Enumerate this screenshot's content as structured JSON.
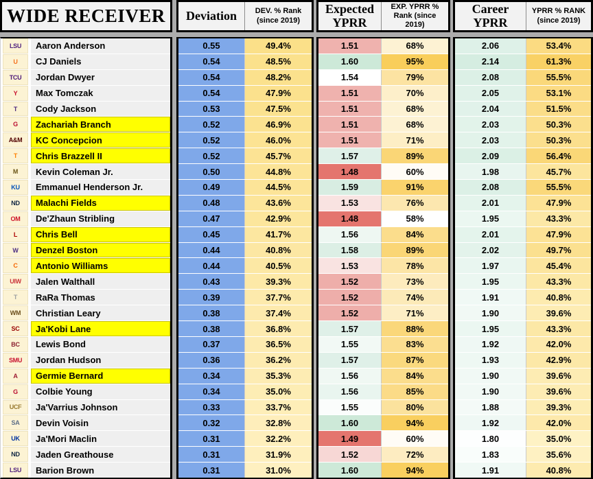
{
  "title": "WIDE RECEIVER",
  "headers": {
    "deviation": "Deviation",
    "dev_rank": "DEV. % Rank (since 2019)",
    "expected_yprr": "Expected YPRR",
    "exp_rank": "EXP. YPRR % Rank (since 2019)",
    "career_yprr": "Career YPRR",
    "yprr_rank": "YPRR % RANK (since 2019)"
  },
  "colors": {
    "row_bg": "#EFEFEF",
    "row_highlight": "#FFFF00",
    "logo_cell_bg": "#FCF3D4",
    "header_bg": "#F2F2F2",
    "gap_bg": "#ACACAC",
    "deviation_fill": "#7FA8E9",
    "scales": {
      "dev_rank": {
        "min": 31.0,
        "max": 49.4,
        "from": "#FEF0C0",
        "to": "#FBE089"
      },
      "exp_rank": {
        "min": 58,
        "max": 95,
        "from": "#FFFFFF",
        "to": "#F9CE5B"
      },
      "career_yprr": {
        "min": 1.8,
        "max": 2.14,
        "from": "#FDFEFE",
        "to": "#D5EDE1"
      },
      "yprr_rank": {
        "min": 35.0,
        "max": 61.3,
        "from": "#FEF2C4",
        "to": "#F9D165"
      }
    }
  },
  "chart_data": {
    "type": "table",
    "columns": [
      "Player",
      "Team",
      "Deviation",
      "DEV. % Rank (since 2019)",
      "Expected YPRR",
      "EXP. YPRR % Rank (since 2019)",
      "Career YPRR",
      "YPRR % RANK (since 2019)"
    ],
    "rows": [
      {
        "name": "Aaron Anderson",
        "team_abbr": "LSU",
        "team_color": "#52247F",
        "highlighted": false,
        "deviation": "0.55",
        "dev_rank": "49.4%",
        "expected_yprr": "1.51",
        "expected_yprr_color": "#EFB2AE",
        "exp_rank": "68%",
        "career_yprr": "2.06",
        "yprr_rank": "53.4%"
      },
      {
        "name": "CJ Daniels",
        "team_abbr": "U",
        "team_color": "#F47321",
        "highlighted": false,
        "deviation": "0.54",
        "dev_rank": "48.5%",
        "expected_yprr": "1.60",
        "expected_yprr_color": "#CDE9D8",
        "exp_rank": "95%",
        "career_yprr": "2.14",
        "yprr_rank": "61.3%"
      },
      {
        "name": "Jordan Dwyer",
        "team_abbr": "TCU",
        "team_color": "#4D1979",
        "highlighted": false,
        "deviation": "0.54",
        "dev_rank": "48.2%",
        "expected_yprr": "1.54",
        "expected_yprr_color": "#FFFFFF",
        "exp_rank": "79%",
        "career_yprr": "2.08",
        "yprr_rank": "55.5%"
      },
      {
        "name": "Max Tomczak",
        "team_abbr": "Y",
        "team_color": "#C8102E",
        "highlighted": false,
        "deviation": "0.54",
        "dev_rank": "47.9%",
        "expected_yprr": "1.51",
        "expected_yprr_color": "#EFB2AE",
        "exp_rank": "70%",
        "career_yprr": "2.05",
        "yprr_rank": "53.1%"
      },
      {
        "name": "Cody Jackson",
        "team_abbr": "T",
        "team_color": "#4F2D7F",
        "highlighted": false,
        "deviation": "0.53",
        "dev_rank": "47.5%",
        "expected_yprr": "1.51",
        "expected_yprr_color": "#EFB2AE",
        "exp_rank": "68%",
        "career_yprr": "2.04",
        "yprr_rank": "51.5%"
      },
      {
        "name": "Zachariah Branch",
        "team_abbr": "G",
        "team_color": "#BA0C2F",
        "highlighted": true,
        "deviation": "0.52",
        "dev_rank": "46.9%",
        "expected_yprr": "1.51",
        "expected_yprr_color": "#EFB2AE",
        "exp_rank": "68%",
        "career_yprr": "2.03",
        "yprr_rank": "50.3%"
      },
      {
        "name": "KC Concepcion",
        "team_abbr": "A&M",
        "team_color": "#500000",
        "highlighted": true,
        "deviation": "0.52",
        "dev_rank": "46.0%",
        "expected_yprr": "1.51",
        "expected_yprr_color": "#EFB2AE",
        "exp_rank": "71%",
        "career_yprr": "2.03",
        "yprr_rank": "50.3%"
      },
      {
        "name": "Chris Brazzell II",
        "team_abbr": "T",
        "team_color": "#FF8200",
        "highlighted": true,
        "deviation": "0.52",
        "dev_rank": "45.7%",
        "expected_yprr": "1.57",
        "expected_yprr_color": "#DFF0E8",
        "exp_rank": "89%",
        "career_yprr": "2.09",
        "yprr_rank": "56.4%"
      },
      {
        "name": "Kevin Coleman Jr.",
        "team_abbr": "M",
        "team_color": "#6B5618",
        "highlighted": false,
        "deviation": "0.50",
        "dev_rank": "44.8%",
        "expected_yprr": "1.48",
        "expected_yprr_color": "#E4756E",
        "exp_rank": "60%",
        "career_yprr": "1.98",
        "yprr_rank": "45.7%"
      },
      {
        "name": "Emmanuel Henderson Jr.",
        "team_abbr": "KU",
        "team_color": "#0051BA",
        "highlighted": false,
        "deviation": "0.49",
        "dev_rank": "44.5%",
        "expected_yprr": "1.59",
        "expected_yprr_color": "#D8EDE2",
        "exp_rank": "91%",
        "career_yprr": "2.08",
        "yprr_rank": "55.5%"
      },
      {
        "name": "Malachi Fields",
        "team_abbr": "ND",
        "team_color": "#0C2340",
        "highlighted": true,
        "deviation": "0.48",
        "dev_rank": "43.6%",
        "expected_yprr": "1.53",
        "expected_yprr_color": "#F9E3E1",
        "exp_rank": "76%",
        "career_yprr": "2.01",
        "yprr_rank": "47.9%"
      },
      {
        "name": "De'Zhaun Stribling",
        "team_abbr": "OM",
        "team_color": "#CE1126",
        "highlighted": false,
        "deviation": "0.47",
        "dev_rank": "42.9%",
        "expected_yprr": "1.48",
        "expected_yprr_color": "#E4756E",
        "exp_rank": "58%",
        "career_yprr": "1.95",
        "yprr_rank": "43.3%"
      },
      {
        "name": "Chris Bell",
        "team_abbr": "L",
        "team_color": "#AD0000",
        "highlighted": true,
        "deviation": "0.45",
        "dev_rank": "41.7%",
        "expected_yprr": "1.56",
        "expected_yprr_color": "#EEF7F2",
        "exp_rank": "84%",
        "career_yprr": "2.01",
        "yprr_rank": "47.9%"
      },
      {
        "name": "Denzel Boston",
        "team_abbr": "W",
        "team_color": "#4B2E83",
        "highlighted": true,
        "deviation": "0.44",
        "dev_rank": "40.8%",
        "expected_yprr": "1.58",
        "expected_yprr_color": "#DCEFE5",
        "exp_rank": "89%",
        "career_yprr": "2.02",
        "yprr_rank": "49.7%"
      },
      {
        "name": "Antonio Williams",
        "team_abbr": "C",
        "team_color": "#F56600",
        "highlighted": true,
        "deviation": "0.44",
        "dev_rank": "40.5%",
        "expected_yprr": "1.53",
        "expected_yprr_color": "#F9E3E1",
        "exp_rank": "78%",
        "career_yprr": "1.97",
        "yprr_rank": "45.4%"
      },
      {
        "name": "Jalen Walthall",
        "team_abbr": "UIW",
        "team_color": "#CB333B",
        "highlighted": false,
        "deviation": "0.43",
        "dev_rank": "39.3%",
        "expected_yprr": "1.52",
        "expected_yprr_color": "#EEAEAA",
        "exp_rank": "73%",
        "career_yprr": "1.95",
        "yprr_rank": "43.3%"
      },
      {
        "name": "RaRa Thomas",
        "team_abbr": "T",
        "team_color": "#9EA2A2",
        "highlighted": false,
        "deviation": "0.39",
        "dev_rank": "37.7%",
        "expected_yprr": "1.52",
        "expected_yprr_color": "#EEAEAA",
        "exp_rank": "74%",
        "career_yprr": "1.91",
        "yprr_rank": "40.8%"
      },
      {
        "name": "Christian Leary",
        "team_abbr": "WM",
        "team_color": "#6C4F1D",
        "highlighted": false,
        "deviation": "0.38",
        "dev_rank": "37.4%",
        "expected_yprr": "1.52",
        "expected_yprr_color": "#EEAEAA",
        "exp_rank": "71%",
        "career_yprr": "1.90",
        "yprr_rank": "39.6%"
      },
      {
        "name": "Ja'Kobi Lane",
        "team_abbr": "SC",
        "team_color": "#990000",
        "highlighted": true,
        "deviation": "0.38",
        "dev_rank": "36.8%",
        "expected_yprr": "1.57",
        "expected_yprr_color": "#DFF0E8",
        "exp_rank": "88%",
        "career_yprr": "1.95",
        "yprr_rank": "43.3%"
      },
      {
        "name": "Lewis Bond",
        "team_abbr": "BC",
        "team_color": "#8C2232",
        "highlighted": false,
        "deviation": "0.37",
        "dev_rank": "36.5%",
        "expected_yprr": "1.55",
        "expected_yprr_color": "#F2F9F5",
        "exp_rank": "83%",
        "career_yprr": "1.92",
        "yprr_rank": "42.0%"
      },
      {
        "name": "Jordan Hudson",
        "team_abbr": "SMU",
        "team_color": "#C8102E",
        "highlighted": false,
        "deviation": "0.36",
        "dev_rank": "36.2%",
        "expected_yprr": "1.57",
        "expected_yprr_color": "#DFF0E8",
        "exp_rank": "87%",
        "career_yprr": "1.93",
        "yprr_rank": "42.9%"
      },
      {
        "name": "Germie Bernard",
        "team_abbr": "A",
        "team_color": "#9E1B32",
        "highlighted": true,
        "deviation": "0.34",
        "dev_rank": "35.3%",
        "expected_yprr": "1.56",
        "expected_yprr_color": "#F0F8F3",
        "exp_rank": "84%",
        "career_yprr": "1.90",
        "yprr_rank": "39.6%"
      },
      {
        "name": "Colbie Young",
        "team_abbr": "G",
        "team_color": "#BA0C2F",
        "highlighted": false,
        "deviation": "0.34",
        "dev_rank": "35.0%",
        "expected_yprr": "1.56",
        "expected_yprr_color": "#E9F5EF",
        "exp_rank": "85%",
        "career_yprr": "1.90",
        "yprr_rank": "39.6%"
      },
      {
        "name": "Ja'Varrius Johnson",
        "team_abbr": "UCF",
        "team_color": "#997A2F",
        "highlighted": false,
        "deviation": "0.33",
        "dev_rank": "33.7%",
        "expected_yprr": "1.55",
        "expected_yprr_color": "#FBFDFC",
        "exp_rank": "80%",
        "career_yprr": "1.88",
        "yprr_rank": "39.3%"
      },
      {
        "name": "Devin Voisin",
        "team_abbr": "SA",
        "team_color": "#5C6E87",
        "highlighted": false,
        "deviation": "0.32",
        "dev_rank": "32.8%",
        "expected_yprr": "1.60",
        "expected_yprr_color": "#CDE9D8",
        "exp_rank": "94%",
        "career_yprr": "1.92",
        "yprr_rank": "42.0%"
      },
      {
        "name": "Ja'Mori Maclin",
        "team_abbr": "UK",
        "team_color": "#0033A0",
        "highlighted": false,
        "deviation": "0.31",
        "dev_rank": "32.2%",
        "expected_yprr": "1.49",
        "expected_yprr_color": "#E4756E",
        "exp_rank": "60%",
        "career_yprr": "1.80",
        "yprr_rank": "35.0%"
      },
      {
        "name": "Jaden Greathouse",
        "team_abbr": "ND",
        "team_color": "#0C2340",
        "highlighted": false,
        "deviation": "0.31",
        "dev_rank": "31.9%",
        "expected_yprr": "1.52",
        "expected_yprr_color": "#F7D7D5",
        "exp_rank": "72%",
        "career_yprr": "1.83",
        "yprr_rank": "35.6%"
      },
      {
        "name": "Barion Brown",
        "team_abbr": "LSU",
        "team_color": "#52247F",
        "highlighted": false,
        "deviation": "0.31",
        "dev_rank": "31.0%",
        "expected_yprr": "1.60",
        "expected_yprr_color": "#CDE9D8",
        "exp_rank": "94%",
        "career_yprr": "1.91",
        "yprr_rank": "40.8%"
      }
    ]
  }
}
